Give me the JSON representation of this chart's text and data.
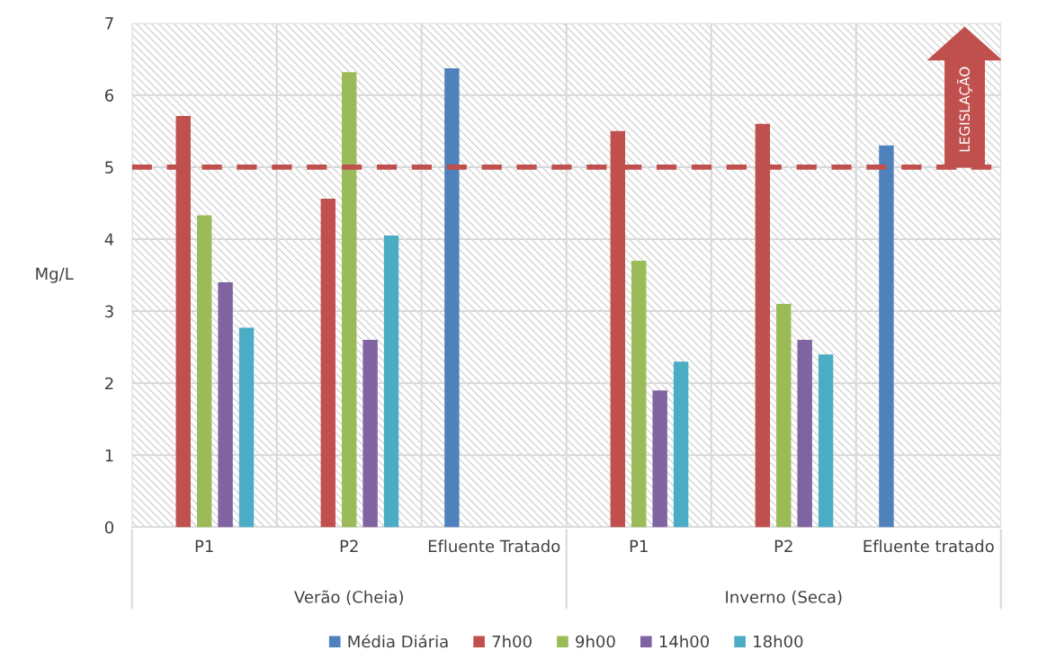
{
  "chart_data": {
    "type": "bar",
    "ylabel": "Mg/L",
    "categories": [
      "P1",
      "P2",
      "Efluente Tratado",
      "P1",
      "P2",
      "Efluente tratado"
    ],
    "series": [
      {
        "name": "Média Diária",
        "color": "#4f81bd",
        "values": [
          null,
          null,
          6.37,
          null,
          null,
          5.3
        ]
      },
      {
        "name": "7h00",
        "color": "#c0504d",
        "values": [
          5.71,
          4.56,
          null,
          5.5,
          5.6,
          null
        ]
      },
      {
        "name": "9h00",
        "color": "#9bbb59",
        "values": [
          4.33,
          6.32,
          null,
          3.7,
          3.1,
          null
        ]
      },
      {
        "name": "14h00",
        "color": "#8064a2",
        "values": [
          3.4,
          2.6,
          null,
          1.9,
          2.6,
          null
        ]
      },
      {
        "name": "18h00",
        "color": "#4bacc6",
        "values": [
          2.77,
          4.05,
          null,
          2.3,
          2.4,
          null
        ]
      }
    ],
    "ylim": [
      0,
      7
    ],
    "yticks": [
      0,
      1,
      2,
      3,
      4,
      5,
      6,
      7
    ],
    "ref_lines": [
      {
        "axis": "y",
        "value": 5,
        "label": "LEGISLAÇÃO",
        "color": "#c0504d",
        "line_style": "dashed"
      }
    ],
    "annotations": [
      "Verão (Cheia)",
      "Inverno (Seca)"
    ],
    "grid": true,
    "legend": "bottom"
  }
}
